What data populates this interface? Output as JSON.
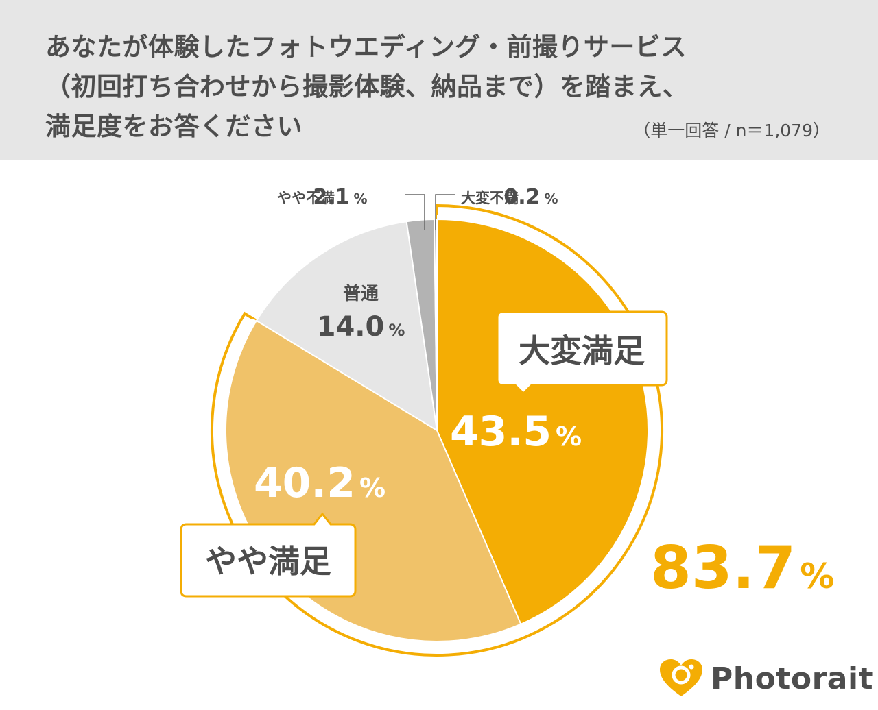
{
  "header": {
    "title_line_1": "あなたが体験したフォトウエディング・前撮りサービス",
    "title_line_2": "（初回打ち合わせから撮影体験、納品まで）を踏まえ、",
    "title_line_3": "満足度をお答ください",
    "sample_note": "（単一回答 / n＝1,079）"
  },
  "chart_data": {
    "type": "pie",
    "unit": "%",
    "slices": [
      {
        "label": "大変満足",
        "value": 43.5,
        "color": "#f4ad04",
        "label_style": "white"
      },
      {
        "label": "やや満足",
        "value": 40.2,
        "color": "#f0c269",
        "label_style": "white"
      },
      {
        "label": "普通",
        "value": 14.0,
        "color": "#e6e6e6",
        "label_style": "dark"
      },
      {
        "label": "やや不満",
        "value": 2.1,
        "color": "#b3b3b3",
        "label_style": "callout"
      },
      {
        "label": "大変不満",
        "value": 0.2,
        "color": "#8c8c8c",
        "label_style": "callout"
      }
    ],
    "combined": {
      "value": 83.7,
      "color": "#f4ad04"
    }
  },
  "colors": {
    "accent": "#f4ad04",
    "light_accent": "#f0c269",
    "header_bg": "#e6e6e6",
    "text": "#4d4d4d"
  },
  "logo": {
    "text": "Photorait",
    "icon": "heart-camera-icon"
  }
}
